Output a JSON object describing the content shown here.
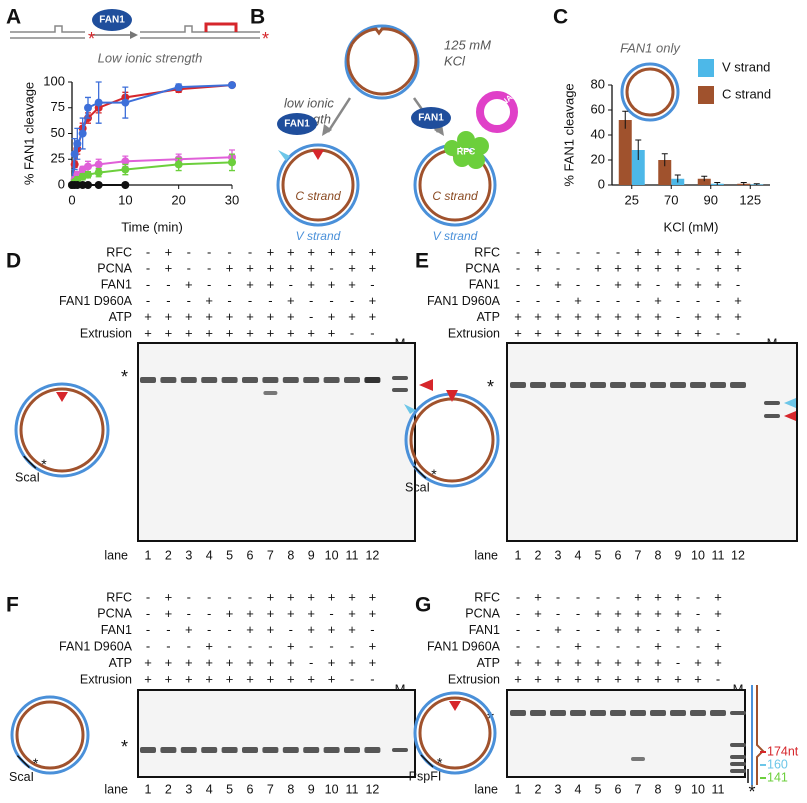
{
  "panel_labels": [
    "A",
    "B",
    "C",
    "D",
    "E",
    "F",
    "G"
  ],
  "chart_data": [
    {
      "type": "line",
      "ylabel": "% FAN1 cleavage",
      "xlabel": "Time (min)",
      "x": [
        0,
        0.5,
        1,
        2,
        3,
        5,
        10,
        20,
        30
      ],
      "xlim": [
        0,
        30
      ],
      "xticks": [
        0,
        10,
        20,
        30
      ],
      "ylim": [
        0,
        100
      ],
      "yticks": [
        0,
        25,
        50,
        75,
        100
      ],
      "series": [
        {
          "color": "#d6262b",
          "values": [
            0,
            20,
            35,
            55,
            65,
            75,
            85,
            93,
            97
          ],
          "errors": [
            0,
            3,
            5,
            5,
            5,
            5,
            5,
            3,
            2
          ]
        },
        {
          "color": "#3d6fd9",
          "values": [
            0,
            30,
            40,
            50,
            75,
            80,
            80,
            95,
            97
          ],
          "errors": [
            0,
            15,
            15,
            15,
            10,
            20,
            15,
            3,
            2
          ]
        },
        {
          "color": "#e060d8",
          "values": [
            0,
            5,
            10,
            15,
            18,
            20,
            23,
            25,
            27
          ],
          "errors": [
            0,
            3,
            3,
            3,
            5,
            5,
            5,
            5,
            7
          ]
        },
        {
          "color": "#6ccf3c",
          "values": [
            0,
            3,
            5,
            8,
            10,
            12,
            15,
            20,
            22
          ],
          "errors": [
            0,
            2,
            3,
            3,
            3,
            4,
            5,
            6,
            8
          ]
        },
        {
          "color": "#111111",
          "values": [
            0,
            0,
            0,
            0,
            0,
            0,
            0,
            null,
            null
          ],
          "errors": [
            0,
            0,
            0,
            0,
            0,
            0,
            0,
            null,
            null
          ]
        }
      ]
    },
    {
      "type": "bar",
      "ylabel": "% FAN1 cleavage",
      "xlabel": "KCl (mM)",
      "annotation": "FAN1 only",
      "categories": [
        "25",
        "70",
        "90",
        "125"
      ],
      "ylim": [
        0,
        80
      ],
      "yticks": [
        0,
        20,
        40,
        60,
        80
      ],
      "series": [
        {
          "name": "V strand",
          "color": "#4db8e8",
          "values": [
            28,
            5,
            1,
            0.5
          ],
          "errors": [
            8,
            3,
            1,
            0.5
          ]
        },
        {
          "name": "C strand",
          "color": "#a0522d",
          "values": [
            52,
            20,
            5,
            1
          ],
          "errors": [
            7,
            5,
            2,
            1
          ]
        }
      ]
    }
  ],
  "panel_a_schematic": {
    "enzyme": "FAN1",
    "condition": "Low ionic strength",
    "star_left": "*",
    "star_right": "*"
  },
  "panel_b": {
    "condition_left": [
      "low ionic",
      "strength"
    ],
    "condition_right": [
      "125 mM",
      "KCl"
    ],
    "enzyme_left": "FAN1",
    "enzyme_right": "FAN1",
    "rfc": "RFC",
    "pcna": "PCNA",
    "strand_c_left": "C strand",
    "strand_v_left": "V strand",
    "strand_c_right": "C strand",
    "strand_v_right": "V strand"
  },
  "gels": [
    {
      "row_labels": [
        "RFC",
        "PCNA",
        "FAN1",
        "FAN1 D960A",
        "ATP",
        "Extrusion"
      ],
      "signs": [
        [
          "-",
          "+",
          "-",
          "-",
          "-",
          "-",
          "+",
          "+",
          "+",
          "+",
          "+",
          "+"
        ],
        [
          "-",
          "+",
          "-",
          "-",
          "+",
          "+",
          "+",
          "+",
          "+",
          "-",
          "+",
          "+"
        ],
        [
          "-",
          "-",
          "+",
          "-",
          "-",
          "+",
          "+",
          "-",
          "+",
          "+",
          "+",
          "-"
        ],
        [
          "-",
          "-",
          "-",
          "+",
          "-",
          "-",
          "-",
          "+",
          "-",
          "-",
          "-",
          "+"
        ],
        [
          "+",
          "+",
          "+",
          "+",
          "+",
          "+",
          "+",
          "+",
          "-",
          "+",
          "+",
          "+"
        ],
        [
          "+",
          "+",
          "+",
          "+",
          "+",
          "+",
          "+",
          "+",
          "+",
          "+",
          "-",
          "-"
        ]
      ],
      "marker": "M",
      "lane_label": "lane",
      "lanes": [
        1,
        2,
        3,
        4,
        5,
        6,
        7,
        8,
        9,
        10,
        11,
        12
      ],
      "star": "*",
      "site": "ScaI",
      "site_star": "*"
    },
    {
      "row_labels": [
        "RFC",
        "PCNA",
        "FAN1",
        "FAN1 D960A",
        "ATP",
        "Extrusion"
      ],
      "signs": [
        [
          "-",
          "+",
          "-",
          "-",
          "-",
          "-",
          "+",
          "+",
          "+",
          "+",
          "+",
          "+"
        ],
        [
          "-",
          "+",
          "-",
          "-",
          "+",
          "+",
          "+",
          "+",
          "+",
          "-",
          "+",
          "+"
        ],
        [
          "-",
          "-",
          "+",
          "-",
          "-",
          "+",
          "+",
          "-",
          "+",
          "+",
          "+",
          "-"
        ],
        [
          "-",
          "-",
          "-",
          "+",
          "-",
          "-",
          "-",
          "+",
          "-",
          "-",
          "-",
          "+"
        ],
        [
          "+",
          "+",
          "+",
          "+",
          "+",
          "+",
          "+",
          "+",
          "-",
          "+",
          "+",
          "+"
        ],
        [
          "+",
          "+",
          "+",
          "+",
          "+",
          "+",
          "+",
          "+",
          "+",
          "+",
          "-",
          "-"
        ]
      ],
      "marker": "M",
      "lane_label": "lane",
      "lanes": [
        1,
        2,
        3,
        4,
        5,
        6,
        7,
        8,
        9,
        10,
        11,
        12
      ],
      "star": "*",
      "site": "ScaI",
      "site_star": "*"
    },
    {
      "row_labels": [
        "RFC",
        "PCNA",
        "FAN1",
        "FAN1 D960A",
        "ATP",
        "Extrusion"
      ],
      "signs": [
        [
          "-",
          "+",
          "-",
          "-",
          "-",
          "-",
          "+",
          "+",
          "+",
          "+",
          "+",
          "+"
        ],
        [
          "-",
          "+",
          "-",
          "-",
          "+",
          "+",
          "+",
          "+",
          "+",
          "-",
          "+",
          "+"
        ],
        [
          "-",
          "-",
          "+",
          "-",
          "-",
          "+",
          "+",
          "-",
          "+",
          "+",
          "+",
          "-"
        ],
        [
          "-",
          "-",
          "-",
          "+",
          "-",
          "-",
          "-",
          "+",
          "-",
          "-",
          "-",
          "+"
        ],
        [
          "+",
          "+",
          "+",
          "+",
          "+",
          "+",
          "+",
          "+",
          "-",
          "+",
          "+",
          "+"
        ],
        [
          "+",
          "+",
          "+",
          "+",
          "+",
          "+",
          "+",
          "+",
          "+",
          "+",
          "-",
          "-"
        ]
      ],
      "marker": "M",
      "lane_label": "lane",
      "lanes": [
        1,
        2,
        3,
        4,
        5,
        6,
        7,
        8,
        9,
        10,
        11,
        12
      ],
      "star": "*",
      "site": "ScaI",
      "site_star": "*"
    },
    {
      "row_labels": [
        "RFC",
        "PCNA",
        "FAN1",
        "FAN1 D960A",
        "ATP",
        "Extrusion"
      ],
      "signs": [
        [
          "-",
          "+",
          "-",
          "-",
          "-",
          "-",
          "+",
          "+",
          "+",
          "-",
          "+"
        ],
        [
          "-",
          "+",
          "-",
          "-",
          "+",
          "+",
          "+",
          "+",
          "+",
          "-",
          "+"
        ],
        [
          "-",
          "-",
          "+",
          "-",
          "-",
          "+",
          "+",
          "-",
          "+",
          "+",
          "-"
        ],
        [
          "-",
          "-",
          "-",
          "+",
          "-",
          "-",
          "-",
          "+",
          "-",
          "-",
          "+"
        ],
        [
          "+",
          "+",
          "+",
          "+",
          "+",
          "+",
          "+",
          "+",
          "-",
          "+",
          "+"
        ],
        [
          "+",
          "+",
          "+",
          "+",
          "+",
          "+",
          "+",
          "+",
          "+",
          "+",
          "-"
        ]
      ],
      "marker": "M",
      "lane_label": "lane",
      "lanes": [
        1,
        2,
        3,
        4,
        5,
        6,
        7,
        8,
        9,
        10,
        11
      ],
      "star": "*",
      "site": "PspFI",
      "site_star": "*",
      "ladder": [
        "174nt",
        "160",
        "141"
      ],
      "ladder_star": "*"
    }
  ]
}
